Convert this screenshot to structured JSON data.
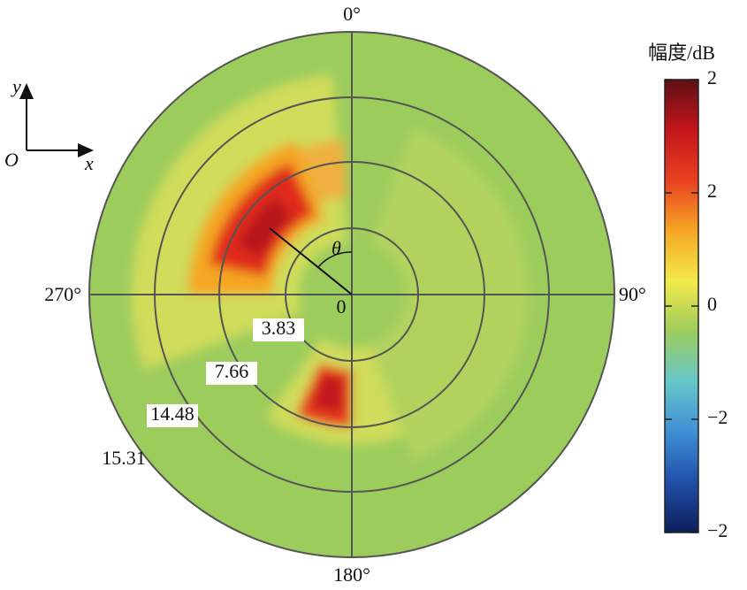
{
  "chart_data": {
    "type": "polar-heatmap",
    "angle_labels": [
      "0°",
      "90°",
      "180°",
      "270°"
    ],
    "center_label": "0",
    "ring_labels": [
      "3.83",
      "7.66",
      "14.48",
      "15.31"
    ],
    "colorbar": {
      "title": "幅度/dB",
      "labels": [
        "2",
        "2",
        "0",
        "−2",
        "−2"
      ],
      "colors": [
        "#5e0f14",
        "#c4161c",
        "#e8401f",
        "#f5a623",
        "#f3ea4a",
        "#9ccc5c",
        "#66c7c9",
        "#3f8fd6",
        "#1f4fa8",
        "#0d1f5c"
      ]
    },
    "axis_icon": {
      "y": "y",
      "origin": "O",
      "x": "x"
    },
    "angle_symbol": "θ"
  }
}
